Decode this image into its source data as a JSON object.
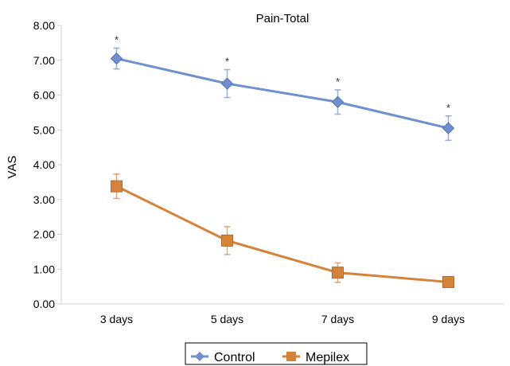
{
  "chart_data": {
    "type": "line",
    "title": "Pain-Total",
    "xlabel": "",
    "ylabel": "VAS",
    "categories": [
      "3 days",
      "5 days",
      "7 days",
      "9 days"
    ],
    "ylim": [
      0,
      8
    ],
    "yticks": [
      "0.00",
      "1.00",
      "2.00",
      "3.00",
      "4.00",
      "5.00",
      "6.00",
      "7.00",
      "8.00"
    ],
    "grid": false,
    "legend": "bottom",
    "series": [
      {
        "name": "Control",
        "color": "#6f8fcf",
        "marker": "diamond",
        "values": [
          7.05,
          6.33,
          5.8,
          5.05
        ],
        "error": [
          0.3,
          0.4,
          0.35,
          0.35
        ],
        "significance": [
          "*",
          "*",
          "*",
          "*"
        ]
      },
      {
        "name": "Mepilex",
        "color": "#d5823b",
        "marker": "square",
        "values": [
          3.38,
          1.82,
          0.9,
          0.63
        ],
        "error": [
          0.35,
          0.4,
          0.28,
          0.12
        ],
        "significance": [
          "",
          "",
          "",
          ""
        ]
      }
    ]
  }
}
